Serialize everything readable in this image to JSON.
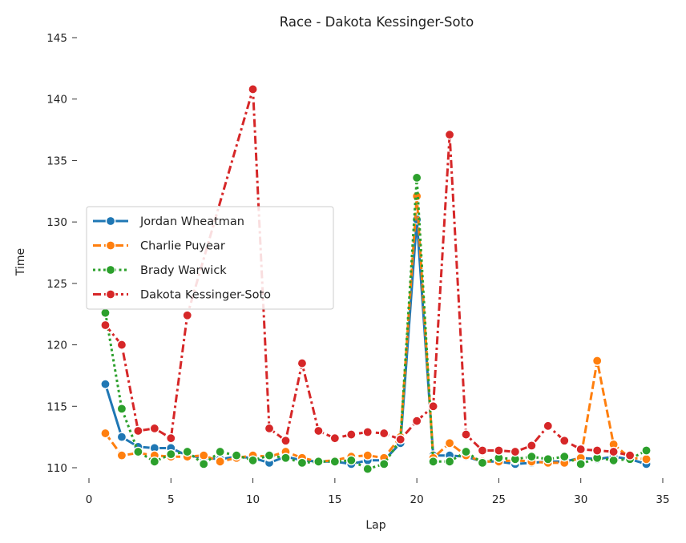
{
  "chart_data": {
    "type": "line",
    "title": "Race - Dakota Kessinger-Soto",
    "xlabel": "Lap",
    "ylabel": "Time",
    "xlim": [
      0,
      35
    ],
    "ylim": [
      109,
      145
    ],
    "xticks": [
      0,
      5,
      10,
      15,
      20,
      25,
      30,
      35
    ],
    "yticks": [
      110,
      115,
      120,
      125,
      130,
      135,
      140,
      145
    ],
    "grid": false,
    "legend_position": "center-left",
    "series": [
      {
        "name": "Jordan Wheatman",
        "color": "#1f77b4",
        "dash": "solid",
        "x": [
          1,
          2,
          3,
          4,
          5,
          6,
          7,
          8,
          9,
          10,
          11,
          12,
          13,
          14,
          15,
          16,
          17,
          18,
          19,
          20,
          21,
          22,
          23,
          24,
          25,
          26,
          27,
          28,
          29,
          30,
          31,
          32,
          33,
          34
        ],
        "y": [
          116.8,
          112.5,
          111.7,
          111.6,
          111.6,
          111.0,
          110.8,
          110.7,
          110.9,
          110.8,
          110.4,
          110.9,
          110.6,
          110.5,
          110.5,
          110.3,
          110.6,
          110.6,
          112.0,
          130.2,
          111.0,
          111.0,
          110.9,
          110.5,
          110.5,
          110.3,
          110.4,
          110.5,
          110.5,
          110.8,
          110.7,
          110.9,
          110.7,
          110.3
        ]
      },
      {
        "name": "Charlie Puyear",
        "color": "#ff7f0e",
        "dash": "dashed",
        "x": [
          1,
          2,
          3,
          4,
          5,
          6,
          7,
          8,
          9,
          10,
          11,
          12,
          13,
          14,
          15,
          16,
          17,
          18,
          19,
          20,
          21,
          22,
          23,
          24,
          25,
          26,
          27,
          28,
          29,
          30,
          31,
          32,
          33,
          34
        ],
        "y": [
          112.8,
          111.0,
          111.2,
          111.0,
          110.9,
          110.9,
          111.0,
          110.5,
          110.8,
          111.0,
          110.9,
          111.3,
          110.8,
          110.5,
          110.6,
          110.9,
          111.0,
          110.8,
          112.5,
          132.1,
          110.8,
          112.0,
          111.0,
          110.5,
          110.5,
          110.6,
          110.5,
          110.4,
          110.4,
          110.8,
          118.7,
          111.9,
          110.8,
          110.7
        ]
      },
      {
        "name": "Brady Warwick",
        "color": "#2ca02c",
        "dash": "dotted",
        "x": [
          1,
          2,
          3,
          4,
          5,
          6,
          7,
          8,
          9,
          10,
          11,
          12,
          13,
          14,
          15,
          16,
          17,
          18,
          19,
          20,
          21,
          22,
          23,
          24,
          25,
          26,
          27,
          28,
          29,
          30,
          31,
          32,
          33,
          34
        ],
        "y": [
          122.6,
          114.8,
          111.3,
          110.5,
          111.1,
          111.3,
          110.3,
          111.3,
          111.0,
          110.6,
          111.0,
          110.8,
          110.4,
          110.5,
          110.5,
          110.6,
          109.9,
          110.3,
          112.3,
          133.6,
          110.5,
          110.5,
          111.3,
          110.4,
          110.8,
          110.7,
          110.9,
          110.7,
          110.9,
          110.3,
          110.8,
          110.6,
          110.7,
          111.4
        ]
      },
      {
        "name": "Dakota Kessinger-Soto",
        "color": "#d62728",
        "dash": "dashdot",
        "x": [
          1,
          2,
          3,
          4,
          5,
          6,
          7,
          8,
          9,
          10,
          11,
          12,
          13,
          14,
          15,
          16,
          17,
          18,
          19,
          20,
          21,
          22,
          23,
          24,
          25,
          26,
          27,
          28,
          29,
          30,
          31,
          32,
          33,
          34
        ],
        "y": [
          121.6,
          120.0,
          113.0,
          113.2,
          112.4,
          122.4,
          null,
          null,
          null,
          140.8,
          113.2,
          112.2,
          118.5,
          113.0,
          112.4,
          112.7,
          112.9,
          112.8,
          112.3,
          113.8,
          115.0,
          137.1,
          112.7,
          111.4,
          111.4,
          111.3,
          111.8,
          113.4,
          112.2,
          111.5,
          111.4,
          111.3,
          111.0,
          null
        ]
      }
    ]
  }
}
